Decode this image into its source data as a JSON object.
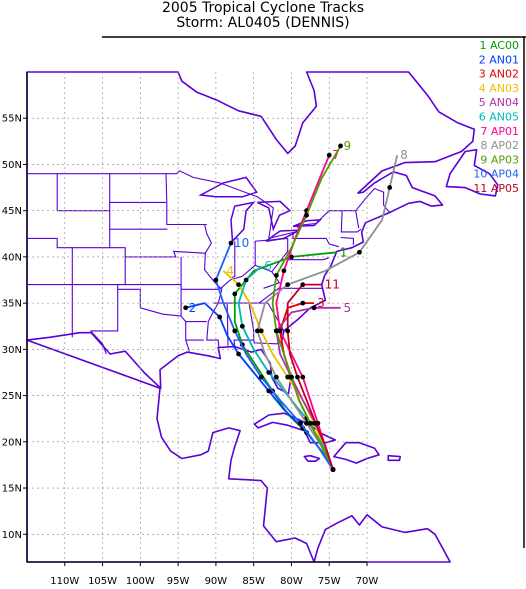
{
  "header": {
    "title": "2005 Tropical Cyclone Tracks",
    "storm_line": "Storm: AL0405 (DENNIS)"
  },
  "map": {
    "projection": "lat-lon",
    "lon_range": [
      -115,
      -70
    ],
    "lat_range": [
      7,
      60
    ],
    "grid": true,
    "lat_ticks": [
      {
        "value": 10,
        "label": "10N"
      },
      {
        "value": 15,
        "label": "15N"
      },
      {
        "value": 20,
        "label": "20N"
      },
      {
        "value": 25,
        "label": "25N"
      },
      {
        "value": 30,
        "label": "30N"
      },
      {
        "value": 35,
        "label": "35N"
      },
      {
        "value": 40,
        "label": "40N"
      },
      {
        "value": 45,
        "label": "45N"
      },
      {
        "value": 50,
        "label": "50N"
      },
      {
        "value": 55,
        "label": "55N"
      }
    ],
    "lon_ticks": [
      {
        "value": -110,
        "label": "110W"
      },
      {
        "value": -105,
        "label": "105W"
      },
      {
        "value": -100,
        "label": "100W"
      },
      {
        "value": -95,
        "label": "95W"
      },
      {
        "value": -90,
        "label": "90W"
      },
      {
        "value": -85,
        "label": "85W"
      },
      {
        "value": -80,
        "label": "80W"
      },
      {
        "value": -75,
        "label": "75W"
      },
      {
        "value": -70,
        "label": "70W"
      }
    ],
    "coast_color": "#5a00d8",
    "legend_position": "top-right"
  },
  "legend": [
    {
      "num": "1",
      "name": "AC00",
      "color": "#00a000"
    },
    {
      "num": "2",
      "name": "AN01",
      "color": "#0040ff"
    },
    {
      "num": "3",
      "name": "AN02",
      "color": "#e00000"
    },
    {
      "num": "4",
      "name": "AN03",
      "color": "#e8c000"
    },
    {
      "num": "5",
      "name": "AN04",
      "color": "#b030b0"
    },
    {
      "num": "6",
      "name": "AN05",
      "color": "#00b8b8"
    },
    {
      "num": "7",
      "name": "AP01",
      "color": "#ff0090"
    },
    {
      "num": "8",
      "name": "AP02",
      "color": "#909090"
    },
    {
      "num": "9",
      "name": "AP03",
      "color": "#50a000"
    },
    {
      "num": "10",
      "name": "AP04",
      "color": "#2060ff"
    },
    {
      "num": "11",
      "name": "AP05",
      "color": "#c00020"
    }
  ],
  "tracks": [
    {
      "num": "1",
      "color": "#00a000",
      "points": [
        [
          -74.5,
          17
        ],
        [
          -76,
          19
        ],
        [
          -78,
          21
        ],
        [
          -80.5,
          23
        ],
        [
          -82.5,
          25.5
        ],
        [
          -84.5,
          28
        ],
        [
          -86.5,
          30.5
        ],
        [
          -87.5,
          33
        ],
        [
          -87.5,
          36
        ],
        [
          -85,
          38.5
        ],
        [
          -80,
          40
        ],
        [
          -74,
          40.5
        ]
      ]
    },
    {
      "num": "2",
      "color": "#0040ff",
      "points": [
        [
          -74.5,
          17
        ],
        [
          -76.5,
          19.5
        ],
        [
          -78.5,
          21.5
        ],
        [
          -81,
          23.5
        ],
        [
          -83,
          25.5
        ],
        [
          -85,
          27.5
        ],
        [
          -87,
          29.5
        ],
        [
          -88.5,
          31.5
        ],
        [
          -89.5,
          33.5
        ],
        [
          -91.5,
          35
        ],
        [
          -94,
          34.5
        ]
      ]
    },
    {
      "num": "3",
      "color": "#e00000",
      "points": [
        [
          -74.5,
          17
        ],
        [
          -76,
          19.5
        ],
        [
          -77.5,
          22
        ],
        [
          -79,
          24.5
        ],
        [
          -80,
          27
        ],
        [
          -81,
          29.5
        ],
        [
          -81.5,
          32
        ],
        [
          -80.5,
          34.5
        ],
        [
          -78.5,
          35
        ],
        [
          -77,
          35
        ]
      ]
    },
    {
      "num": "4",
      "color": "#e8c000",
      "points": [
        [
          -74.5,
          17
        ],
        [
          -75.8,
          19.5
        ],
        [
          -77,
          22
        ],
        [
          -78.5,
          24.5
        ],
        [
          -80.5,
          27
        ],
        [
          -82.5,
          29.5
        ],
        [
          -84,
          32
        ],
        [
          -85.5,
          35
        ],
        [
          -87,
          37
        ],
        [
          -89,
          38.5
        ]
      ]
    },
    {
      "num": "5",
      "color": "#b030b0",
      "points": [
        [
          -74.5,
          17
        ],
        [
          -75.5,
          19.5
        ],
        [
          -76.8,
          22
        ],
        [
          -78.5,
          24.5
        ],
        [
          -80,
          27
        ],
        [
          -81.5,
          29.5
        ],
        [
          -82,
          32
        ],
        [
          -80,
          34
        ],
        [
          -77,
          34.5
        ],
        [
          -73.5,
          34.5
        ]
      ]
    },
    {
      "num": "6",
      "color": "#00b8b8",
      "points": [
        [
          -74.5,
          17
        ],
        [
          -76,
          19.8
        ],
        [
          -78,
          22.5
        ],
        [
          -80.5,
          25
        ],
        [
          -83,
          27.5
        ],
        [
          -85,
          30
        ],
        [
          -86.5,
          32.5
        ],
        [
          -87,
          35
        ],
        [
          -86,
          37.5
        ],
        [
          -84,
          39
        ]
      ]
    },
    {
      "num": "7",
      "color": "#ff0090",
      "points": [
        [
          -74.5,
          17
        ],
        [
          -75.5,
          19.5
        ],
        [
          -76.5,
          22
        ],
        [
          -77.5,
          24.5
        ],
        [
          -78.5,
          27
        ],
        [
          -80,
          29.5
        ],
        [
          -81.5,
          32
        ],
        [
          -82,
          35
        ],
        [
          -81,
          38.5
        ],
        [
          -79.5,
          42
        ],
        [
          -78,
          45
        ],
        [
          -76.5,
          48
        ],
        [
          -75,
          51
        ]
      ]
    },
    {
      "num": "8",
      "color": "#909090",
      "points": [
        [
          -74.5,
          17
        ],
        [
          -76,
          19.5
        ],
        [
          -78,
          22
        ],
        [
          -80,
          24.5
        ],
        [
          -82,
          27
        ],
        [
          -83.5,
          29.5
        ],
        [
          -84.5,
          32
        ],
        [
          -83.5,
          35
        ],
        [
          -80.5,
          37
        ],
        [
          -75.5,
          38.5
        ],
        [
          -71,
          40.5
        ],
        [
          -68,
          44
        ],
        [
          -67,
          47.5
        ],
        [
          -66,
          51
        ]
      ]
    },
    {
      "num": "9",
      "color": "#50a000",
      "points": [
        [
          -74.5,
          17
        ],
        [
          -76,
          19.5
        ],
        [
          -77.5,
          22
        ],
        [
          -79,
          24.5
        ],
        [
          -80,
          27
        ],
        [
          -81,
          29.5
        ],
        [
          -82,
          32
        ],
        [
          -82.5,
          35
        ],
        [
          -82,
          38
        ],
        [
          -80,
          41
        ],
        [
          -78,
          44.5
        ],
        [
          -76,
          48.5
        ],
        [
          -73.5,
          52
        ]
      ]
    },
    {
      "num": "10",
      "color": "#2060ff",
      "points": [
        [
          -74.5,
          17
        ],
        [
          -76.5,
          19.5
        ],
        [
          -78.8,
          22
        ],
        [
          -81.5,
          24.5
        ],
        [
          -84,
          27
        ],
        [
          -86,
          29.5
        ],
        [
          -87.5,
          32
        ],
        [
          -89,
          35
        ],
        [
          -90,
          37.5
        ],
        [
          -89,
          39.5
        ],
        [
          -88,
          41.5
        ]
      ]
    },
    {
      "num": "11",
      "color": "#c00020",
      "points": [
        [
          -74.5,
          17
        ],
        [
          -75.5,
          19.5
        ],
        [
          -76.8,
          22
        ],
        [
          -78,
          24.5
        ],
        [
          -79.2,
          27
        ],
        [
          -80.2,
          29.5
        ],
        [
          -80.5,
          32
        ],
        [
          -80.5,
          35
        ],
        [
          -78.5,
          37
        ],
        [
          -76,
          37
        ]
      ]
    }
  ]
}
